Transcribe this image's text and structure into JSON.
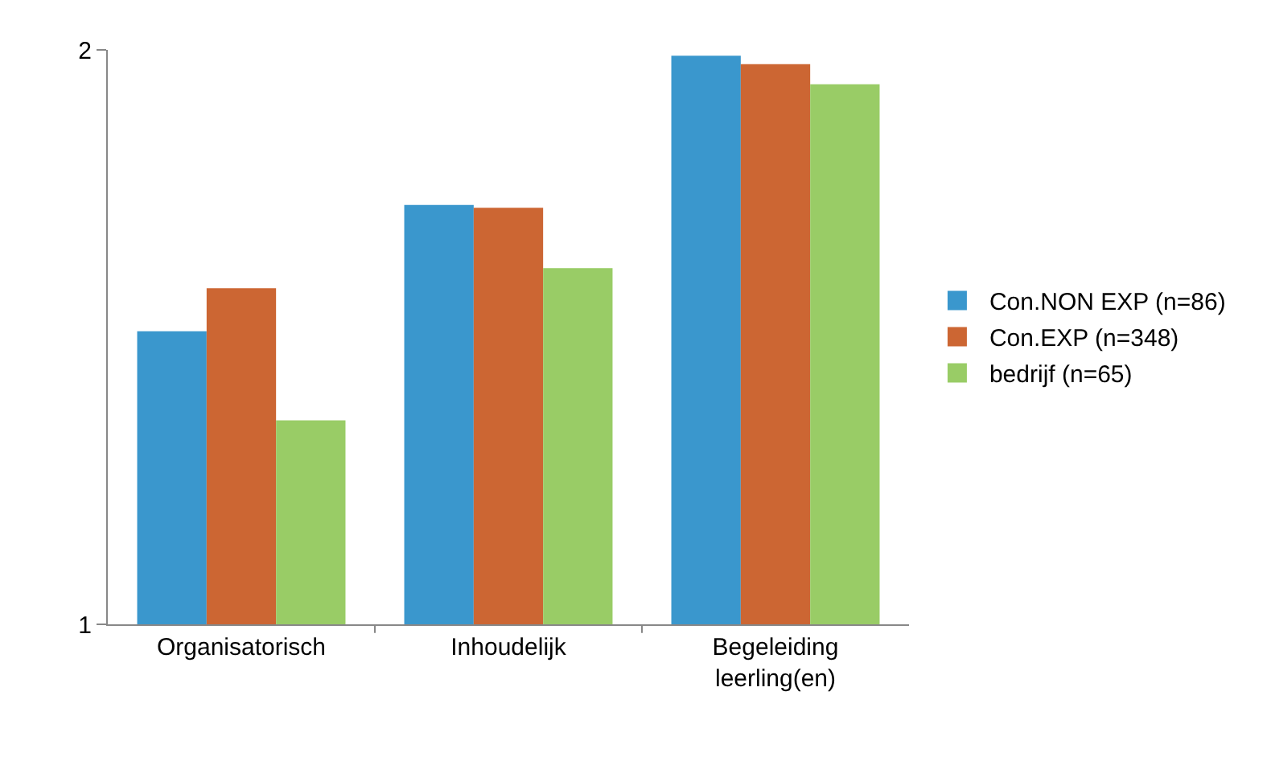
{
  "chart_data": {
    "type": "bar",
    "categories": [
      "Organisatorisch",
      "Inhoudelijk",
      "Begeleiding\nleerling(en)"
    ],
    "series": [
      {
        "name": "Con.NON EXP (n=86)",
        "color": "#3a97cd",
        "values": [
          1.51,
          1.73,
          1.99
        ]
      },
      {
        "name": "Con.EXP (n=348)",
        "color": "#cc6633",
        "values": [
          1.585,
          1.725,
          1.975
        ]
      },
      {
        "name": "bedrijf (n=65)",
        "color": "#99cc66",
        "values": [
          1.355,
          1.62,
          1.94
        ]
      }
    ],
    "ylim": [
      1,
      2
    ],
    "yticks": [
      1,
      2
    ],
    "legend": "right"
  }
}
